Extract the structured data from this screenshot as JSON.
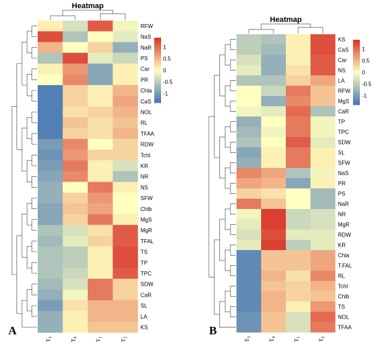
{
  "colors": {
    "low": "#4575b4",
    "mid": "#ffffbf",
    "high": "#d73027"
  },
  "chart_data": [
    {
      "type": "heatmap",
      "panel_label": "A",
      "title": "Heatmap",
      "columns": [
        "T3",
        "T4",
        "T1",
        "T2"
      ],
      "rows": [
        "RFW",
        "NaS",
        "NaR",
        "PS",
        "Car",
        "PR",
        "Chla",
        "CaS",
        "NOL",
        "RL",
        "TFAA",
        "RDW",
        "Tchl",
        "KR",
        "NR",
        "NS",
        "SFW",
        "Chlb",
        "MgS",
        "MgR",
        "TFAL",
        "TS",
        "TP",
        "TPC",
        "SDW",
        "CaR",
        "SL",
        "LA",
        "KS"
      ],
      "values": [
        [
          0.1,
          -0.3,
          1.1,
          -0.1
        ],
        [
          1.2,
          -0.6,
          0.0,
          -0.2
        ],
        [
          0.5,
          0.0,
          0.3,
          -0.8
        ],
        [
          -0.6,
          1.2,
          -0.2,
          -0.4
        ],
        [
          0.1,
          0.7,
          -0.9,
          0.1
        ],
        [
          0.0,
          0.8,
          -0.9,
          0.1
        ],
        [
          -1.3,
          0.3,
          0.1,
          0.5
        ],
        [
          -1.3,
          0.3,
          0.1,
          0.6
        ],
        [
          -1.3,
          0.2,
          0.3,
          0.5
        ],
        [
          -1.3,
          0.4,
          0.2,
          0.4
        ],
        [
          -1.3,
          0.3,
          0.2,
          0.5
        ],
        [
          -1.0,
          0.8,
          0.0,
          0.3
        ],
        [
          -1.1,
          0.7,
          0.3,
          0.3
        ],
        [
          -1.0,
          0.9,
          0.1,
          -0.3
        ],
        [
          -0.9,
          0.8,
          0.1,
          -0.6
        ],
        [
          -0.8,
          0.0,
          0.9,
          0.1
        ],
        [
          -0.8,
          0.3,
          0.7,
          0.0
        ],
        [
          -0.9,
          0.4,
          0.6,
          0.0
        ],
        [
          -0.9,
          0.3,
          0.9,
          0.1
        ],
        [
          -0.6,
          -0.3,
          0.2,
          1.1
        ],
        [
          -0.7,
          -0.2,
          0.3,
          1.1
        ],
        [
          -0.6,
          -0.5,
          0.1,
          1.2
        ],
        [
          -0.6,
          -0.5,
          0.1,
          1.2
        ],
        [
          -0.6,
          -0.4,
          0.1,
          1.1
        ],
        [
          -0.7,
          -0.3,
          0.9,
          0.3
        ],
        [
          -0.8,
          -0.1,
          0.9,
          0.3
        ],
        [
          -1.0,
          0.2,
          0.5,
          0.5
        ],
        [
          -0.8,
          0.1,
          0.5,
          0.5
        ],
        [
          -0.8,
          0.1,
          0.4,
          0.4
        ]
      ],
      "legend_ticks": [
        "1",
        "0.5",
        "0",
        "-0.5",
        "-1"
      ],
      "legend_range": [
        -1.4,
        1.4
      ]
    },
    {
      "type": "heatmap",
      "panel_label": "B",
      "title": "Heatmap",
      "columns": [
        "T3",
        "T4",
        "T1",
        "T2"
      ],
      "rows": [
        "KS",
        "CaS",
        "Car",
        "NS",
        "LA",
        "RFW",
        "MgS",
        "CaR",
        "TP",
        "TPC",
        "SDW",
        "SL",
        "SFW",
        "NaS",
        "PR",
        "PS",
        "NaR",
        "NR",
        "MgR",
        "RDW",
        "KR",
        "Chla",
        "T.FAL",
        "RL",
        "Tchl",
        "Chlb",
        "TS",
        "NOL",
        "TFAA"
      ],
      "values": [
        [
          -0.5,
          -0.6,
          0.1,
          1.2
        ],
        [
          -0.5,
          -0.7,
          0.1,
          1.2
        ],
        [
          -0.3,
          -0.8,
          0.1,
          1.1
        ],
        [
          -0.2,
          -0.8,
          0.2,
          1.1
        ],
        [
          -0.6,
          -0.6,
          0.3,
          0.6
        ],
        [
          0.0,
          -0.4,
          0.9,
          0.4
        ],
        [
          0.0,
          -0.8,
          0.8,
          0.4
        ],
        [
          -0.1,
          -0.2,
          1.0,
          -0.6
        ],
        [
          -0.8,
          0.0,
          0.9,
          -0.1
        ],
        [
          -0.7,
          -0.1,
          0.9,
          -0.1
        ],
        [
          -0.6,
          0.0,
          1.1,
          -0.2
        ],
        [
          -0.9,
          0.1,
          0.9,
          0.1
        ],
        [
          -0.8,
          0.1,
          0.9,
          0.1
        ],
        [
          0.8,
          0.6,
          -0.6,
          -0.1
        ],
        [
          0.6,
          0.5,
          -0.9,
          0.1
        ],
        [
          0.3,
          0.2,
          0.0,
          -0.7
        ],
        [
          0.9,
          0.4,
          0.0,
          -0.7
        ],
        [
          -0.1,
          1.3,
          -0.4,
          -0.3
        ],
        [
          -0.2,
          1.3,
          -0.4,
          -0.3
        ],
        [
          -0.3,
          1.2,
          -0.2,
          -0.2
        ],
        [
          -0.2,
          1.3,
          -0.5,
          -0.2
        ],
        [
          -1.2,
          0.4,
          0.4,
          0.6
        ],
        [
          -1.2,
          0.4,
          0.4,
          0.6
        ],
        [
          -1.2,
          0.5,
          0.2,
          0.8
        ],
        [
          -1.2,
          0.4,
          0.3,
          0.5
        ],
        [
          -1.2,
          0.5,
          0.3,
          0.4
        ],
        [
          -1.2,
          0.5,
          0.1,
          0.7
        ],
        [
          -1.1,
          0.4,
          -0.3,
          1.0
        ],
        [
          -1.1,
          0.4,
          -0.3,
          0.9
        ]
      ],
      "legend_ticks": [
        "1",
        "0.5",
        "0",
        "-0.5",
        "-1"
      ],
      "legend_range": [
        -1.4,
        1.4
      ]
    }
  ]
}
